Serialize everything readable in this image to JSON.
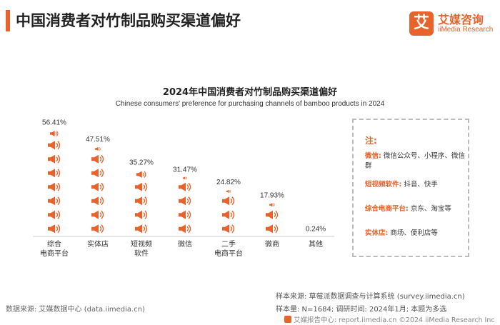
{
  "header": {
    "title": "中国消费者对竹制品购买渠道偏好",
    "brand_logo_char": "艾",
    "brand_name": "艾媒咨询",
    "brand_sub": "iiMedia Research",
    "accent_color": "#e8622c"
  },
  "chart_data": {
    "type": "bar",
    "title": "2024年中国消费者对竹制品购买渠道偏好",
    "subtitle": "Chinese consumers' preference for purchasing channels of bamboo products in 2024",
    "categories": [
      [
        "综合",
        "电商平台"
      ],
      [
        "实体店"
      ],
      [
        "短视频",
        "软件"
      ],
      [
        "微信"
      ],
      [
        "二手",
        "电商平台"
      ],
      [
        "微商"
      ],
      [
        "其他"
      ]
    ],
    "values": [
      56.41,
      47.51,
      35.27,
      31.47,
      24.82,
      17.93,
      0.24
    ],
    "value_labels": [
      "56.41%",
      "47.51%",
      "35.27%",
      "31.47%",
      "24.82%",
      "17.93%",
      "0.24%"
    ],
    "unit": "%",
    "ylim": [
      0,
      60
    ],
    "icon": "megaphone-icon",
    "color": "#e8622c"
  },
  "notes": {
    "title": "注:",
    "items": [
      {
        "key": "微信:",
        "text": "微信公众号、小程序、微信群"
      },
      {
        "key": "短视频软件:",
        "text": "抖音、快手"
      },
      {
        "key": "综合电商平台:",
        "text": "京东、淘宝等"
      },
      {
        "key": "实体店:",
        "text": "商场、便利店等"
      }
    ]
  },
  "footer": {
    "source_left": "数据来源: 艾媒数据中心 (data.iimedia.cn)",
    "sample_source": "样本来源: 草莓派数据调查与计算系统 (survey.iimedia.cn)",
    "sample_info": "样本量: N=1684; 调研时间: 2024年1月; 本题为多选",
    "copyright": "艾媒报告中心: report.iimedia.cn  ©2024  iiMedia Research Inc"
  }
}
